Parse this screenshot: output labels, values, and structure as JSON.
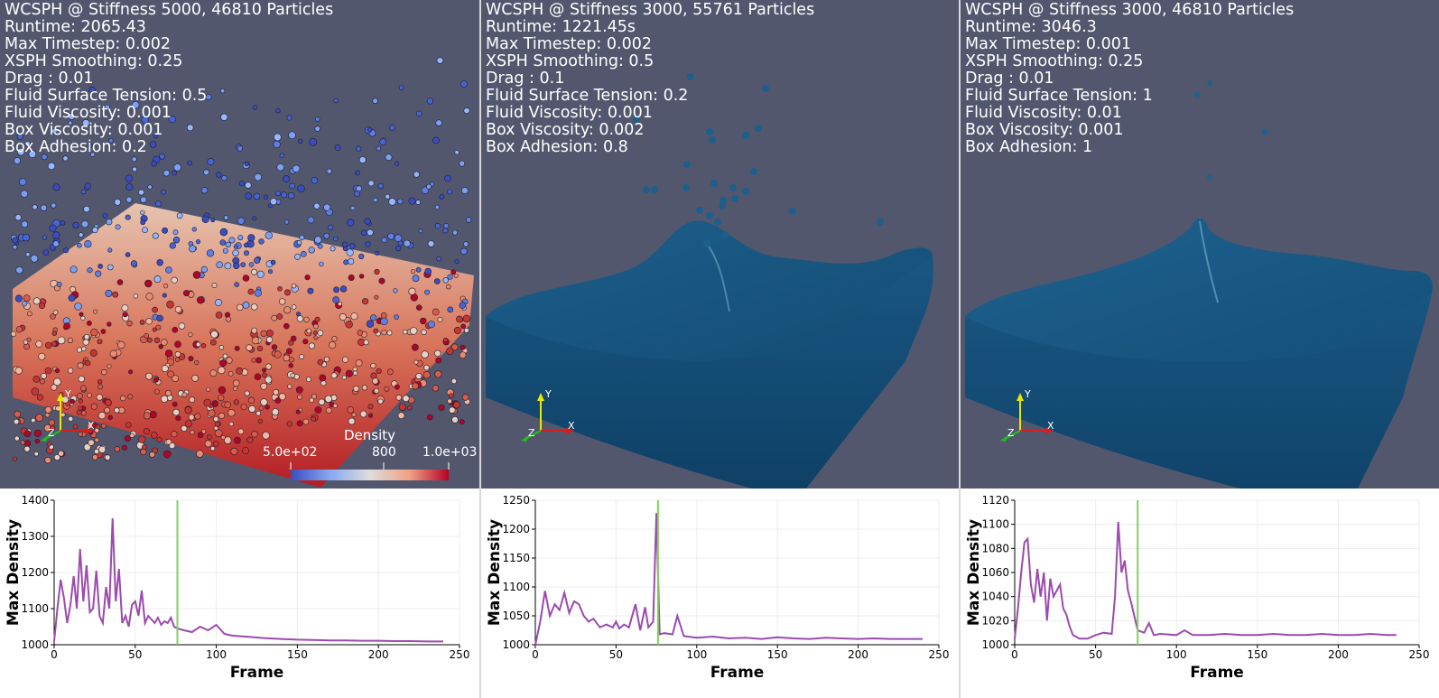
{
  "panels": [
    {
      "info": [
        "WCSPH @ Stiffness 5000, 46810 Particles",
        "Runtime: 2065.43",
        "Max Timestep: 0.002",
        "XSPH Smoothing: 0.25",
        "Drag : 0.01",
        "Fluid Surface Tension: 0.5",
        "Fluid Viscosity: 0.001",
        "Box Viscosity: 0.001",
        "Box Adhesion: 0.2"
      ],
      "axes_triad": {
        "y": "Y",
        "z": "Z",
        "x": "X"
      },
      "colorbar": {
        "title": "Density",
        "min_label": "5.0e+02",
        "mid_label": "800",
        "max_label": "1.0e+03"
      },
      "chart_data": {
        "type": "line",
        "ylabel": "Max Density",
        "xlabel": "Frame",
        "xlim": [
          0,
          250
        ],
        "ylim": [
          1000,
          1400
        ],
        "xticks": [
          "0",
          "50",
          "100",
          "150",
          "200",
          "250"
        ],
        "yticks": [
          "1000",
          "1100",
          "1200",
          "1300",
          "1400"
        ],
        "marker_frame": 76,
        "series_color": "#9b4aae",
        "marker_color": "#7fd25a",
        "x": [
          0,
          2,
          4,
          6,
          8,
          10,
          12,
          14,
          16,
          18,
          20,
          22,
          24,
          26,
          28,
          30,
          32,
          34,
          36,
          38,
          40,
          42,
          44,
          46,
          48,
          50,
          52,
          54,
          56,
          58,
          60,
          62,
          64,
          66,
          68,
          70,
          72,
          74,
          76,
          80,
          85,
          90,
          95,
          100,
          105,
          110,
          120,
          130,
          140,
          150,
          160,
          170,
          180,
          190,
          200,
          210,
          220,
          230,
          240
        ],
        "y": [
          1010,
          1100,
          1180,
          1130,
          1060,
          1110,
          1190,
          1100,
          1265,
          1120,
          1220,
          1090,
          1100,
          1205,
          1080,
          1060,
          1160,
          1100,
          1350,
          1120,
          1210,
          1060,
          1080,
          1050,
          1110,
          1120,
          1080,
          1150,
          1060,
          1080,
          1070,
          1060,
          1075,
          1055,
          1065,
          1060,
          1075,
          1050,
          1045,
          1040,
          1035,
          1050,
          1040,
          1055,
          1030,
          1025,
          1022,
          1018,
          1016,
          1014,
          1013,
          1012,
          1012,
          1011,
          1011,
          1010,
          1010,
          1009,
          1009
        ]
      }
    },
    {
      "info": [
        "WCSPH @ Stiffness 3000, 55761 Particles",
        "Runtime: 1221.45s",
        "Max Timestep: 0.002",
        "XSPH Smoothing: 0.5",
        "Drag : 0.1",
        "Fluid Surface Tension: 0.2",
        "Fluid Viscosity: 0.001",
        "Box Viscosity: 0.002",
        "Box Adhesion: 0.8"
      ],
      "axes_triad": {
        "y": "Y",
        "z": "Z",
        "x": "X"
      },
      "chart_data": {
        "type": "line",
        "ylabel": "Max Density",
        "xlabel": "Frame",
        "xlim": [
          0,
          250
        ],
        "ylim": [
          1000,
          1250
        ],
        "xticks": [
          "0",
          "50",
          "100",
          "150",
          "200",
          "250"
        ],
        "yticks": [
          "1000",
          "1050",
          "1100",
          "1150",
          "1200",
          "1250"
        ],
        "marker_frame": 76,
        "series_color": "#9b4aae",
        "marker_color": "#7fd25a",
        "x": [
          0,
          3,
          6,
          9,
          12,
          15,
          18,
          21,
          24,
          27,
          30,
          33,
          36,
          40,
          44,
          48,
          50,
          52,
          55,
          58,
          62,
          65,
          68,
          70,
          73,
          75,
          77,
          80,
          85,
          88,
          92,
          100,
          110,
          120,
          130,
          140,
          150,
          160,
          170,
          180,
          190,
          200,
          210,
          220,
          230,
          240
        ],
        "y": [
          1000,
          1040,
          1093,
          1050,
          1070,
          1060,
          1090,
          1055,
          1075,
          1070,
          1050,
          1040,
          1045,
          1030,
          1035,
          1030,
          1040,
          1028,
          1035,
          1030,
          1070,
          1025,
          1065,
          1030,
          1040,
          1228,
          1018,
          1020,
          1018,
          1050,
          1015,
          1012,
          1014,
          1011,
          1012,
          1010,
          1013,
          1011,
          1010,
          1012,
          1011,
          1010,
          1011,
          1010,
          1010,
          1010
        ]
      }
    },
    {
      "info": [
        "WCSPH @ Stiffness 3000, 46810 Particles",
        "Runtime: 3046.3",
        "Max Timestep: 0.001",
        "XSPH Smoothing: 0.25",
        "Drag : 0.01",
        "Fluid Surface Tension: 1",
        "Fluid Viscosity: 0.01",
        "Box Viscosity: 0.001",
        "Box Adhesion: 1"
      ],
      "axes_triad": {
        "y": "Y",
        "z": "Z",
        "x": "X"
      },
      "chart_data": {
        "type": "line",
        "ylabel": "Max Density",
        "xlabel": "Frame",
        "xlim": [
          0,
          250
        ],
        "ylim": [
          1000,
          1120
        ],
        "xticks": [
          "0",
          "50",
          "100",
          "150",
          "200",
          "250"
        ],
        "yticks": [
          "1000",
          "1020",
          "1040",
          "1060",
          "1080",
          "1100",
          "1120"
        ],
        "marker_frame": 76,
        "series_color": "#9b4aae",
        "marker_color": "#7fd25a",
        "x": [
          0,
          2,
          4,
          6,
          8,
          10,
          12,
          14,
          16,
          18,
          20,
          22,
          24,
          26,
          28,
          30,
          32,
          34,
          36,
          40,
          45,
          50,
          55,
          60,
          62,
          64,
          66,
          68,
          70,
          72,
          76,
          80,
          83,
          86,
          90,
          100,
          105,
          110,
          120,
          130,
          140,
          150,
          160,
          170,
          180,
          190,
          200,
          210,
          220,
          230,
          236
        ],
        "y": [
          1005,
          1030,
          1060,
          1085,
          1088,
          1050,
          1035,
          1063,
          1040,
          1060,
          1020,
          1055,
          1040,
          1045,
          1050,
          1030,
          1025,
          1015,
          1008,
          1005,
          1005,
          1008,
          1010,
          1009,
          1040,
          1102,
          1060,
          1070,
          1045,
          1035,
          1012,
          1010,
          1018,
          1008,
          1009,
          1008,
          1012,
          1008,
          1008,
          1009,
          1008,
          1008,
          1009,
          1008,
          1008,
          1009,
          1008,
          1008,
          1009,
          1008,
          1008
        ]
      }
    }
  ]
}
